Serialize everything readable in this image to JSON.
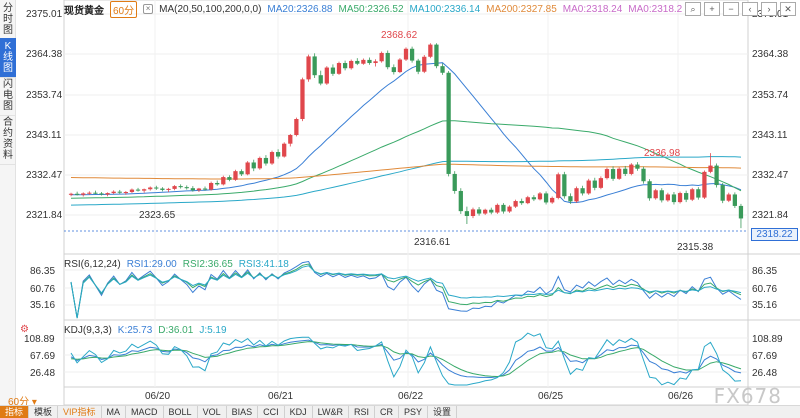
{
  "left_tabs": [
    "分时图",
    "K线图",
    "闪电图",
    "合约资料"
  ],
  "legend": {
    "symbol": "现货黄金",
    "period": "60分",
    "ma_label": "MA(20,50,100,200,0,0)",
    "ma20": "MA20:2326.88",
    "ma50": "MA50:2326.52",
    "ma100": "MA100:2336.14",
    "ma200": "MA200:2327.85",
    "ma0a": "MA0:2318.24",
    "ma0b": "MA0:2318.2"
  },
  "rsi_legend": {
    "label": "RSI(6,12,24)",
    "rsi1": "RSI1:29.00",
    "rsi2": "RSI2:36.65",
    "rsi3": "RSI3:41.18"
  },
  "kdj_legend": {
    "label": "KDJ(9,3,3)",
    "k": "K:25.73",
    "d": "D:36.01",
    "j": "J:5.19"
  },
  "right_icons": [
    "search-icon",
    "plus-icon",
    "minus-icon",
    "left-icon",
    "right-icon",
    "close-icon"
  ],
  "right_icon_glyphs": [
    "⌕",
    "+",
    "−",
    "‹",
    "›",
    "✕"
  ],
  "price_axis": [
    "2375.01",
    "2364.38",
    "2353.74",
    "2343.11",
    "2332.47",
    "2321.84"
  ],
  "rsi_axis": [
    "86.35",
    "60.76",
    "35.16"
  ],
  "kdj_axis": [
    "108.89",
    "67.69",
    "26.48"
  ],
  "date_axis": [
    "06/20",
    "06/21",
    "06/22",
    "06/25",
    "06/26"
  ],
  "annotations": {
    "high1": "2368.62",
    "low1": "2323.65",
    "low2": "2316.61",
    "high2": "2336.98",
    "low3": "2315.38"
  },
  "last_price": "2318.22",
  "period_select": "60分",
  "bottom_tabs": [
    "指标",
    "模板",
    "VIP指标",
    "MA",
    "MACD",
    "BOLL",
    "VOL",
    "BIAS",
    "CCI",
    "KDJ",
    "LW&R",
    "RSI",
    "CR",
    "PSY",
    "设置"
  ],
  "watermark": "FX678",
  "colors": {
    "up": "#e0474c",
    "down": "#3a9a5a",
    "ma20": "#3a7fd5",
    "ma50": "#3aaa6a",
    "ma100": "#2aa8c8",
    "ma200": "#e08a3a",
    "rsi1": "#3a7fd5",
    "rsi2": "#3aaa6a",
    "rsi3": "#2aa8c8"
  },
  "chart_data": {
    "type": "candlestick",
    "yrange": [
      2312,
      2377
    ],
    "candles": [
      [
        2325.0,
        2325.6,
        2324.6,
        2325.3
      ],
      [
        2325.3,
        2325.9,
        2324.8,
        2325.0
      ],
      [
        2325.0,
        2325.7,
        2324.5,
        2325.4
      ],
      [
        2325.4,
        2326.0,
        2325.0,
        2325.6
      ],
      [
        2325.6,
        2326.2,
        2325.2,
        2325.4
      ],
      [
        2325.4,
        2325.8,
        2324.8,
        2325.1
      ],
      [
        2325.1,
        2325.7,
        2324.6,
        2325.5
      ],
      [
        2325.5,
        2326.3,
        2325.2,
        2325.9
      ],
      [
        2325.9,
        2326.4,
        2325.3,
        2325.6
      ],
      [
        2325.6,
        2326.1,
        2325.0,
        2325.8
      ],
      [
        2325.8,
        2326.8,
        2325.5,
        2326.5
      ],
      [
        2326.5,
        2327.0,
        2325.9,
        2326.2
      ],
      [
        2326.2,
        2326.8,
        2325.6,
        2326.6
      ],
      [
        2326.6,
        2327.4,
        2326.2,
        2327.1
      ],
      [
        2327.1,
        2327.6,
        2326.4,
        2326.8
      ],
      [
        2326.8,
        2327.2,
        2326.0,
        2326.4
      ],
      [
        2326.4,
        2327.0,
        2325.8,
        2326.7
      ],
      [
        2326.7,
        2327.8,
        2326.3,
        2327.5
      ],
      [
        2327.5,
        2328.0,
        2326.8,
        2327.2
      ],
      [
        2327.2,
        2327.7,
        2326.5,
        2326.9
      ],
      [
        2326.9,
        2327.5,
        2325.9,
        2326.3
      ],
      [
        2326.3,
        2327.0,
        2325.8,
        2326.8
      ],
      [
        2326.8,
        2327.4,
        2326.2,
        2326.5
      ],
      [
        2326.5,
        2328.8,
        2326.2,
        2328.4
      ],
      [
        2328.4,
        2329.1,
        2327.6,
        2328.0
      ],
      [
        2328.0,
        2330.5,
        2327.7,
        2330.1
      ],
      [
        2330.1,
        2330.6,
        2328.9,
        2329.3
      ],
      [
        2329.3,
        2332.2,
        2329.0,
        2331.8
      ],
      [
        2331.8,
        2332.3,
        2330.4,
        2330.9
      ],
      [
        2330.9,
        2334.7,
        2330.6,
        2334.3
      ],
      [
        2334.3,
        2335.1,
        2331.8,
        2332.6
      ],
      [
        2332.6,
        2336.0,
        2332.2,
        2335.6
      ],
      [
        2335.6,
        2336.4,
        2333.4,
        2334.0
      ],
      [
        2334.0,
        2337.7,
        2333.6,
        2337.3
      ],
      [
        2337.3,
        2338.1,
        2335.4,
        2336.0
      ],
      [
        2336.0,
        2340.1,
        2335.7,
        2339.7
      ],
      [
        2339.7,
        2342.5,
        2338.9,
        2342.2
      ],
      [
        2342.2,
        2347.2,
        2341.8,
        2346.8
      ],
      [
        2346.8,
        2358.7,
        2346.2,
        2358.2
      ],
      [
        2358.2,
        2365.3,
        2357.5,
        2364.8
      ],
      [
        2364.8,
        2365.7,
        2358.6,
        2359.4
      ],
      [
        2359.4,
        2360.7,
        2356.5,
        2357.0
      ],
      [
        2357.0,
        2362.0,
        2356.6,
        2361.6
      ],
      [
        2361.6,
        2362.5,
        2359.2,
        2359.8
      ],
      [
        2359.8,
        2363.3,
        2359.5,
        2362.9
      ],
      [
        2362.9,
        2363.6,
        2360.8,
        2361.4
      ],
      [
        2361.4,
        2363.9,
        2361.0,
        2363.5
      ],
      [
        2363.5,
        2364.3,
        2362.3,
        2362.7
      ],
      [
        2362.7,
        2364.2,
        2362.4,
        2363.8
      ],
      [
        2363.8,
        2364.5,
        2362.4,
        2362.9
      ],
      [
        2362.9,
        2364.0,
        2361.9,
        2363.4
      ],
      [
        2363.4,
        2366.2,
        2363.0,
        2365.8
      ],
      [
        2365.8,
        2366.5,
        2361.1,
        2361.7
      ],
      [
        2361.7,
        2362.5,
        2359.6,
        2360.3
      ],
      [
        2360.3,
        2364.3,
        2360.0,
        2363.9
      ],
      [
        2363.9,
        2367.4,
        2363.5,
        2367.0
      ],
      [
        2367.0,
        2367.6,
        2363.0,
        2363.6
      ],
      [
        2363.6,
        2364.1,
        2359.7,
        2360.4
      ],
      [
        2360.4,
        2365.2,
        2360.0,
        2364.7
      ],
      [
        2364.7,
        2368.6,
        2364.3,
        2368.2
      ],
      [
        2368.2,
        2368.6,
        2361.4,
        2362.0
      ],
      [
        2362.0,
        2362.8,
        2359.5,
        2360.1
      ],
      [
        2360.1,
        2360.6,
        2330.3,
        2331.0
      ],
      [
        2331.0,
        2331.8,
        2325.3,
        2326.1
      ],
      [
        2326.1,
        2326.9,
        2319.5,
        2320.3
      ],
      [
        2320.3,
        2321.6,
        2316.6,
        2318.9
      ],
      [
        2318.9,
        2321.3,
        2318.3,
        2320.8
      ],
      [
        2320.8,
        2321.5,
        2319.0,
        2319.6
      ],
      [
        2319.6,
        2321.0,
        2319.2,
        2320.7
      ],
      [
        2320.7,
        2321.3,
        2319.4,
        2319.9
      ],
      [
        2319.9,
        2322.5,
        2319.5,
        2322.1
      ],
      [
        2322.1,
        2322.6,
        2319.6,
        2320.2
      ],
      [
        2320.2,
        2322.0,
        2319.8,
        2321.6
      ],
      [
        2321.6,
        2323.6,
        2321.2,
        2323.2
      ],
      [
        2323.2,
        2323.9,
        2322.1,
        2322.6
      ],
      [
        2322.6,
        2324.7,
        2322.3,
        2324.3
      ],
      [
        2324.3,
        2324.9,
        2323.2,
        2323.7
      ],
      [
        2323.7,
        2325.8,
        2323.4,
        2325.4
      ],
      [
        2325.4,
        2326.0,
        2322.2,
        2322.8
      ],
      [
        2322.8,
        2324.5,
        2322.4,
        2324.1
      ],
      [
        2324.1,
        2331.4,
        2323.7,
        2330.9
      ],
      [
        2330.9,
        2331.6,
        2323.9,
        2324.6
      ],
      [
        2324.6,
        2325.4,
        2322.4,
        2323.1
      ],
      [
        2323.1,
        2327.4,
        2322.7,
        2326.9
      ],
      [
        2326.9,
        2327.6,
        2324.8,
        2325.4
      ],
      [
        2325.4,
        2329.6,
        2325.0,
        2329.1
      ],
      [
        2329.1,
        2329.9,
        2326.3,
        2327.0
      ],
      [
        2327.0,
        2330.3,
        2326.6,
        2329.8
      ],
      [
        2329.8,
        2332.8,
        2329.4,
        2332.4
      ],
      [
        2332.4,
        2333.2,
        2329.0,
        2329.6
      ],
      [
        2329.6,
        2332.9,
        2329.3,
        2332.5
      ],
      [
        2332.5,
        2333.3,
        2330.4,
        2331.0
      ],
      [
        2331.0,
        2334.1,
        2330.6,
        2333.7
      ],
      [
        2333.7,
        2334.4,
        2331.9,
        2332.5
      ],
      [
        2332.5,
        2333.1,
        2328.2,
        2328.9
      ],
      [
        2328.9,
        2329.5,
        2323.3,
        2324.0
      ],
      [
        2324.0,
        2326.7,
        2323.6,
        2326.3
      ],
      [
        2326.3,
        2326.9,
        2322.8,
        2323.4
      ],
      [
        2323.4,
        2325.6,
        2323.0,
        2325.1
      ],
      [
        2325.1,
        2325.8,
        2322.2,
        2322.9
      ],
      [
        2322.9,
        2325.9,
        2322.5,
        2325.5
      ],
      [
        2325.5,
        2326.2,
        2322.9,
        2323.6
      ],
      [
        2323.6,
        2327.0,
        2323.2,
        2326.6
      ],
      [
        2326.6,
        2327.2,
        2323.6,
        2324.2
      ],
      [
        2324.2,
        2332.0,
        2323.8,
        2331.6
      ],
      [
        2331.6,
        2337.0,
        2331.2,
        2333.4
      ],
      [
        2333.4,
        2334.0,
        2327.1,
        2327.8
      ],
      [
        2327.8,
        2328.4,
        2322.6,
        2323.3
      ],
      [
        2323.3,
        2325.6,
        2322.9,
        2325.1
      ],
      [
        2325.1,
        2325.7,
        2321.2,
        2321.8
      ],
      [
        2321.8,
        2322.4,
        2315.4,
        2318.2
      ]
    ]
  }
}
